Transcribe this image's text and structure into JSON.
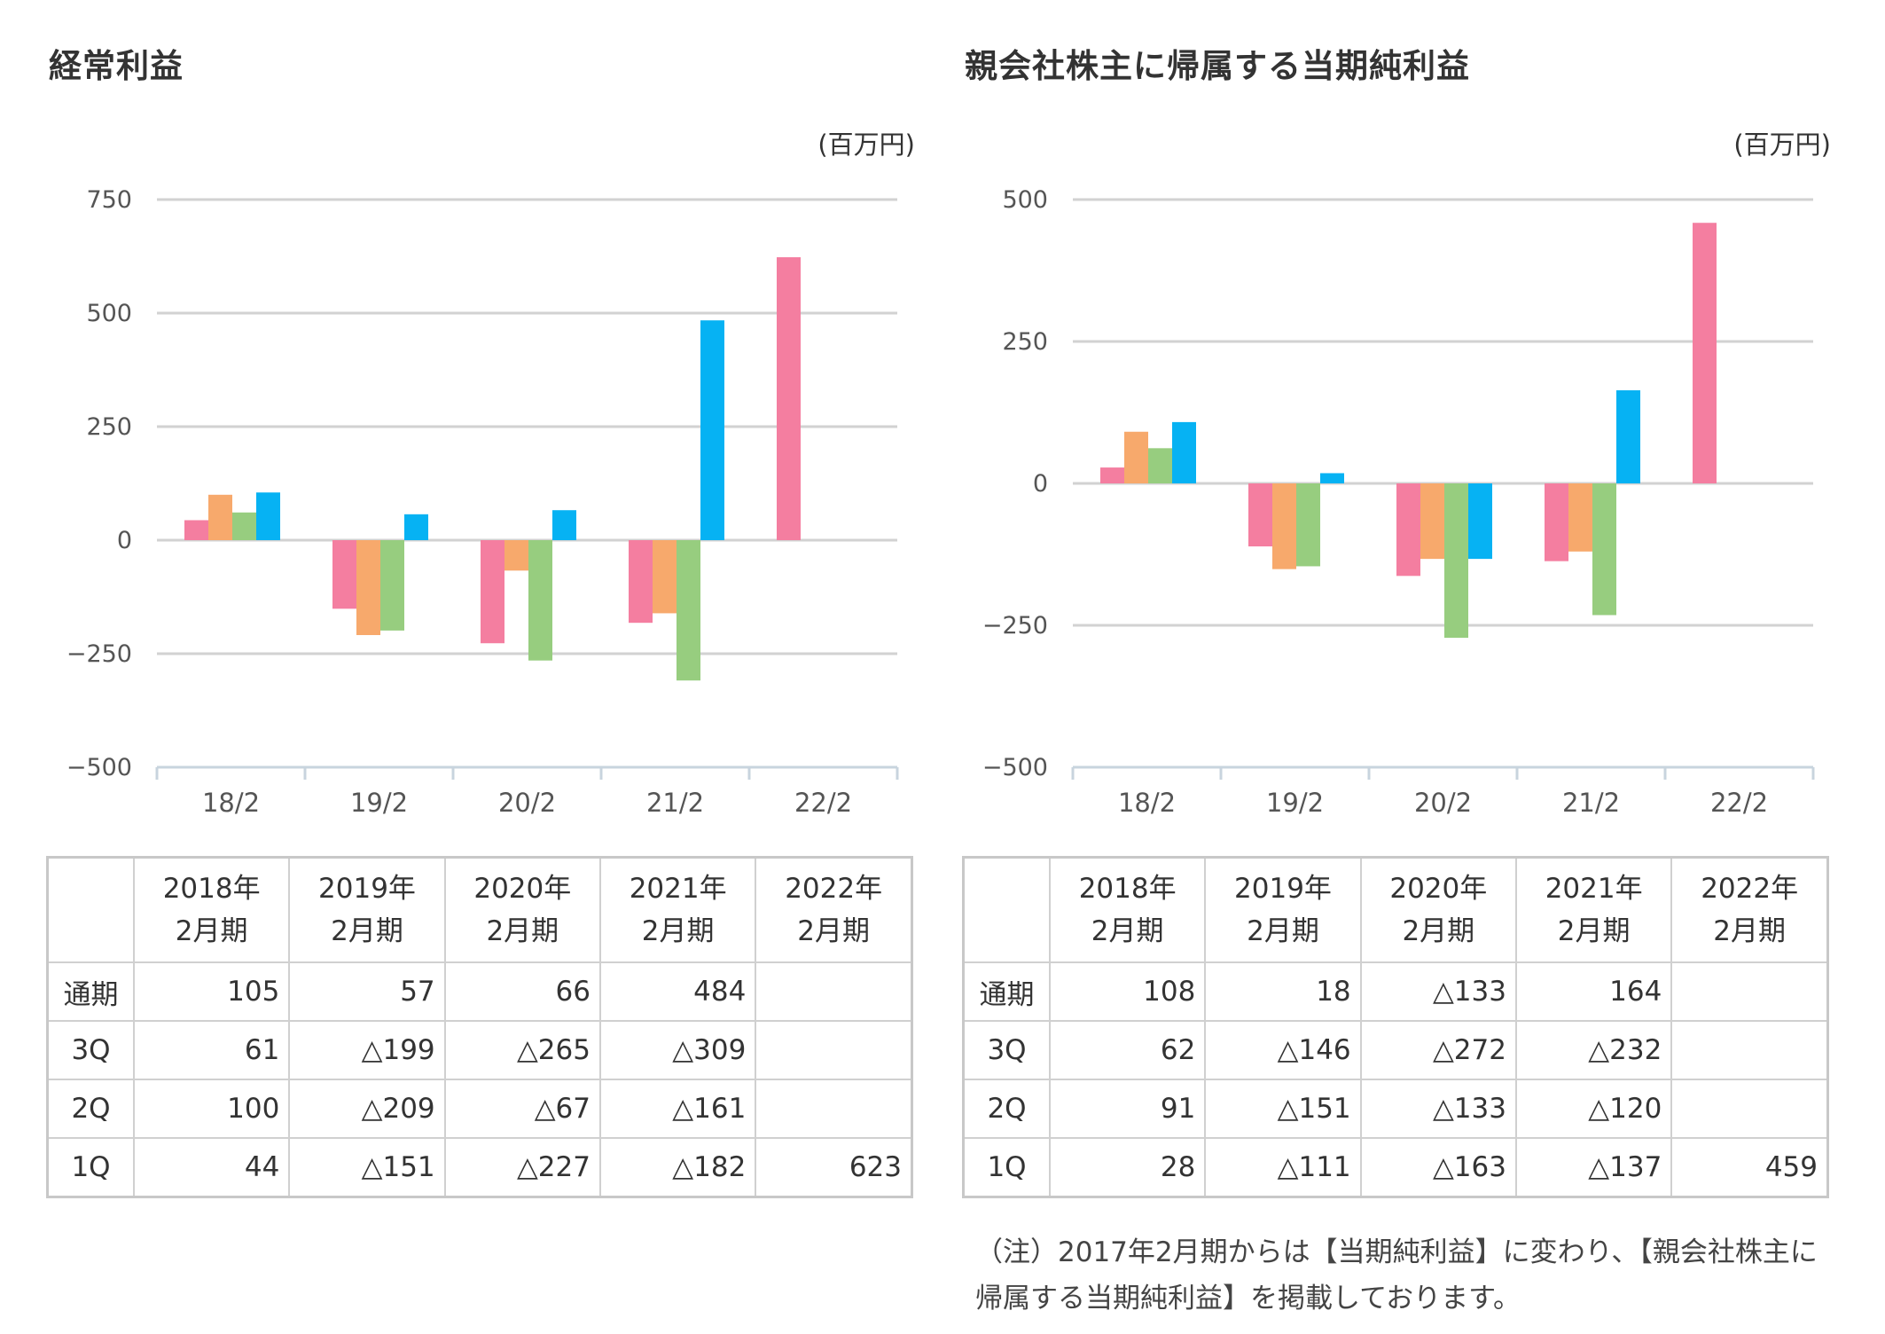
{
  "charts": [
    {
      "title": "経常利益",
      "unit": "(百万円)",
      "table": {
        "headers": [
          {
            "line1": "2018年",
            "line2": "2月期"
          },
          {
            "line1": "2019年",
            "line2": "2月期"
          },
          {
            "line1": "2020年",
            "line2": "2月期"
          },
          {
            "line1": "2021年",
            "line2": "2月期"
          },
          {
            "line1": "2022年",
            "line2": "2月期"
          }
        ],
        "rows": [
          {
            "label": "通期",
            "cells": [
              "105",
              "57",
              "66",
              "484",
              ""
            ]
          },
          {
            "label": "3Q",
            "cells": [
              "61",
              "△199",
              "△265",
              "△309",
              ""
            ]
          },
          {
            "label": "2Q",
            "cells": [
              "100",
              "△209",
              "△67",
              "△161",
              ""
            ]
          },
          {
            "label": "1Q",
            "cells": [
              "44",
              "△151",
              "△227",
              "△182",
              "623"
            ]
          }
        ]
      }
    },
    {
      "title": "親会社株主に帰属する当期純利益",
      "unit": "(百万円)",
      "table": {
        "headers": [
          {
            "line1": "2018年",
            "line2": "2月期"
          },
          {
            "line1": "2019年",
            "line2": "2月期"
          },
          {
            "line1": "2020年",
            "line2": "2月期"
          },
          {
            "line1": "2021年",
            "line2": "2月期"
          },
          {
            "line1": "2022年",
            "line2": "2月期"
          }
        ],
        "rows": [
          {
            "label": "通期",
            "cells": [
              "108",
              "18",
              "△133",
              "164",
              ""
            ]
          },
          {
            "label": "3Q",
            "cells": [
              "62",
              "△146",
              "△272",
              "△232",
              ""
            ]
          },
          {
            "label": "2Q",
            "cells": [
              "91",
              "△151",
              "△133",
              "△120",
              ""
            ]
          },
          {
            "label": "1Q",
            "cells": [
              "28",
              "△111",
              "△163",
              "△137",
              "459"
            ]
          }
        ]
      },
      "note": "（注）2017年2月期からは【当期純利益】に変わり、【親会社株主に帰属する当期純利益】を掲載しております。"
    }
  ],
  "chart_data": [
    {
      "type": "bar",
      "title": "経常利益",
      "ylabel": "(百万円)",
      "categories": [
        "18/2",
        "19/2",
        "20/2",
        "21/2",
        "22/2"
      ],
      "ylim": [
        -500,
        750
      ],
      "yticks": [
        750,
        500,
        250,
        0,
        -250,
        -500
      ],
      "ytick_labels": [
        "750",
        "500",
        "250",
        "0",
        "−250",
        "−500"
      ],
      "grid": true,
      "series": [
        {
          "color": "#f47ea0",
          "values": [
            44,
            -151,
            -227,
            -182,
            623
          ]
        },
        {
          "color": "#f7a96c",
          "values": [
            100,
            -209,
            -67,
            -161,
            null
          ]
        },
        {
          "color": "#97cd7f",
          "values": [
            61,
            -199,
            -265,
            -309,
            null
          ]
        },
        {
          "color": "#06b2f3",
          "values": [
            105,
            57,
            66,
            484,
            null
          ]
        }
      ]
    },
    {
      "type": "bar",
      "title": "親会社株主に帰属する当期純利益",
      "ylabel": "(百万円)",
      "categories": [
        "18/2",
        "19/2",
        "20/2",
        "21/2",
        "22/2"
      ],
      "ylim": [
        -500,
        500
      ],
      "yticks": [
        500,
        250,
        0,
        -250,
        -500
      ],
      "ytick_labels": [
        "500",
        "250",
        "0",
        "−250",
        "−500"
      ],
      "grid": true,
      "series": [
        {
          "color": "#f47ea0",
          "values": [
            28,
            -111,
            -163,
            -137,
            459
          ]
        },
        {
          "color": "#f7a96c",
          "values": [
            91,
            -151,
            -133,
            -120,
            null
          ]
        },
        {
          "color": "#97cd7f",
          "values": [
            62,
            -146,
            -272,
            -232,
            null
          ]
        },
        {
          "color": "#06b2f3",
          "values": [
            108,
            18,
            -133,
            164,
            null
          ]
        }
      ]
    }
  ]
}
